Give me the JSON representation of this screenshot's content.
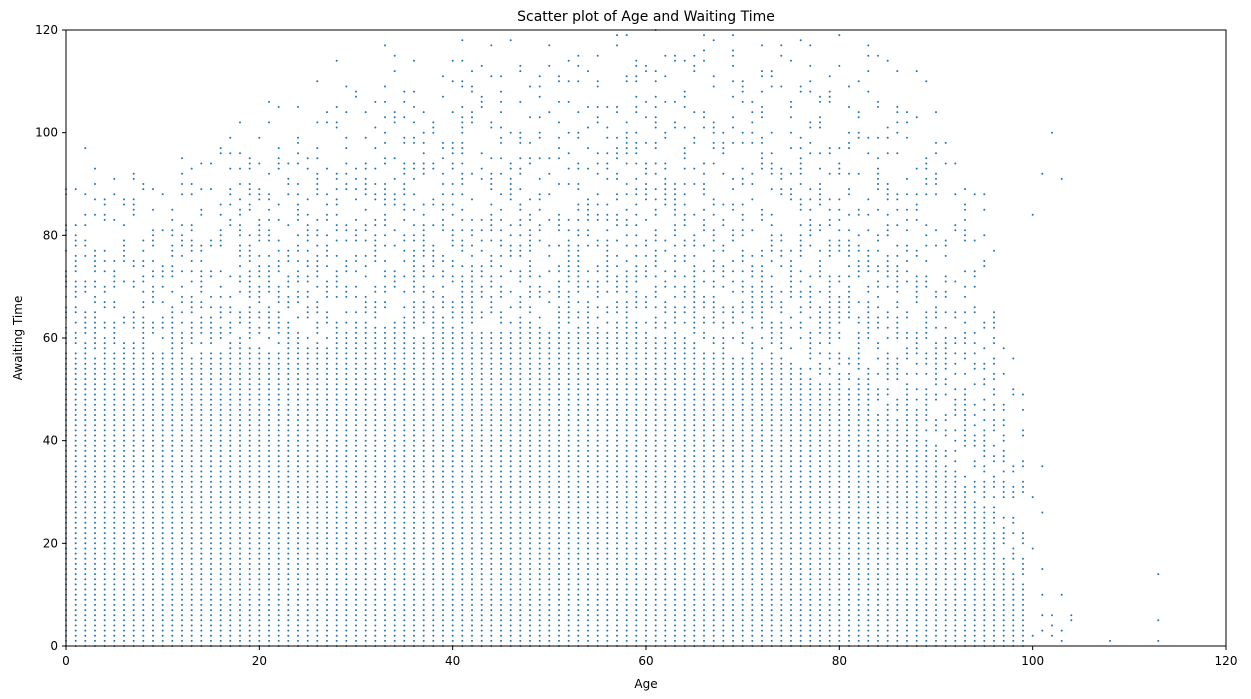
{
  "chart_data": {
    "type": "scatter",
    "title": "Scatter plot of Age and Waiting Time",
    "xlabel": "Age",
    "ylabel": "Awaiting Time",
    "xlim": [
      0,
      120
    ],
    "ylim": [
      0,
      120
    ],
    "xticks": [
      0,
      20,
      40,
      60,
      80,
      100,
      120
    ],
    "yticks": [
      0,
      20,
      40,
      60,
      80,
      100,
      120
    ],
    "grid": false,
    "legend": "none",
    "marker_color": "#1f77b4",
    "density_profile": {
      "x_integer_range": [
        0,
        99
      ],
      "dense_ceiling_by_age": [
        [
          0,
          66
        ],
        [
          10,
          66
        ],
        [
          20,
          68
        ],
        [
          40,
          72
        ],
        [
          60,
          72
        ],
        [
          80,
          60
        ],
        [
          90,
          45
        ],
        [
          95,
          30
        ],
        [
          99,
          12
        ]
      ],
      "sparse_ceiling_by_age": [
        [
          0,
          98
        ],
        [
          10,
          92
        ],
        [
          20,
          106
        ],
        [
          30,
          116
        ],
        [
          50,
          120
        ],
        [
          70,
          120
        ],
        [
          85,
          118
        ],
        [
          90,
          110
        ],
        [
          95,
          90
        ],
        [
          99,
          50
        ]
      ]
    },
    "outlier_points": [
      {
        "x": 100,
        "y": 84
      },
      {
        "x": 100,
        "y": 29
      },
      {
        "x": 100,
        "y": 19
      },
      {
        "x": 100,
        "y": 2
      },
      {
        "x": 101,
        "y": 92
      },
      {
        "x": 101,
        "y": 35
      },
      {
        "x": 101,
        "y": 26
      },
      {
        "x": 101,
        "y": 15
      },
      {
        "x": 101,
        "y": 10
      },
      {
        "x": 101,
        "y": 6
      },
      {
        "x": 101,
        "y": 3
      },
      {
        "x": 102,
        "y": 100
      },
      {
        "x": 102,
        "y": 6
      },
      {
        "x": 102,
        "y": 4
      },
      {
        "x": 102,
        "y": 2
      },
      {
        "x": 103,
        "y": 91
      },
      {
        "x": 103,
        "y": 10
      },
      {
        "x": 103,
        "y": 3
      },
      {
        "x": 103,
        "y": 1
      },
      {
        "x": 104,
        "y": 6
      },
      {
        "x": 104,
        "y": 5
      },
      {
        "x": 108,
        "y": 1
      },
      {
        "x": 113,
        "y": 14
      },
      {
        "x": 113,
        "y": 5
      },
      {
        "x": 113,
        "y": 1
      }
    ]
  }
}
